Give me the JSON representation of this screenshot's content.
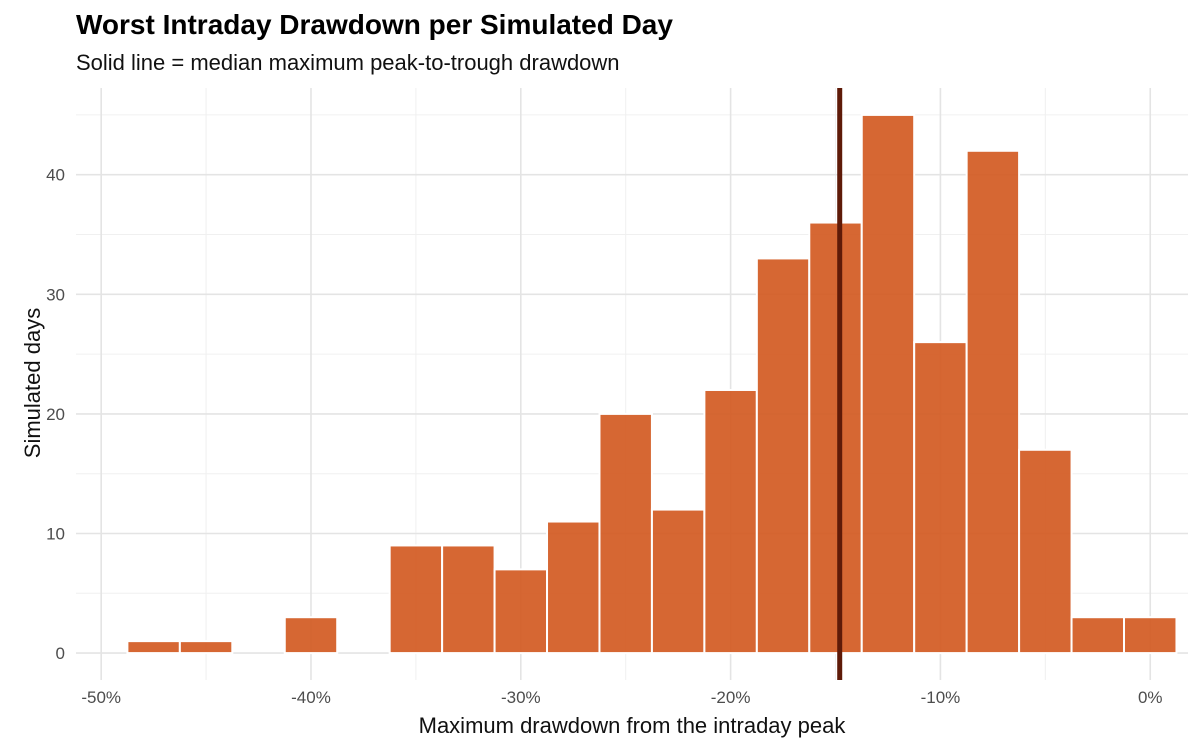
{
  "chart_data": {
    "type": "histogram",
    "title": "Worst Intraday Drawdown per Simulated Day",
    "subtitle": "Solid line = median maximum peak-to-trough drawdown",
    "xlabel": "Maximum drawdown from the intraday peak",
    "ylabel": "Simulated days",
    "x_tick_labels": [
      "-50%",
      "-40%",
      "-30%",
      "-20%",
      "-10%",
      "0%"
    ],
    "x_ticks": [
      -50,
      -40,
      -30,
      -20,
      -10,
      0
    ],
    "y_tick_labels": [
      "0",
      "10",
      "20",
      "30",
      "40"
    ],
    "y_ticks": [
      0,
      10,
      20,
      30,
      40
    ],
    "xlim": [
      -51.2,
      1.8
    ],
    "ylim": [
      -2.25,
      47.25
    ],
    "bin_width": 2.5,
    "bins": [
      {
        "start": -48.75,
        "end": -46.25,
        "count": 1
      },
      {
        "start": -46.25,
        "end": -43.75,
        "count": 1
      },
      {
        "start": -43.75,
        "end": -41.25,
        "count": 0
      },
      {
        "start": -41.25,
        "end": -38.75,
        "count": 3
      },
      {
        "start": -38.75,
        "end": -36.25,
        "count": 0
      },
      {
        "start": -36.25,
        "end": -33.75,
        "count": 9
      },
      {
        "start": -33.75,
        "end": -31.25,
        "count": 9
      },
      {
        "start": -31.25,
        "end": -28.75,
        "count": 7
      },
      {
        "start": -28.75,
        "end": -26.25,
        "count": 11
      },
      {
        "start": -26.25,
        "end": -23.75,
        "count": 20
      },
      {
        "start": -23.75,
        "end": -21.25,
        "count": 12
      },
      {
        "start": -21.25,
        "end": -18.75,
        "count": 22
      },
      {
        "start": -18.75,
        "end": -16.25,
        "count": 33
      },
      {
        "start": -16.25,
        "end": -13.75,
        "count": 36
      },
      {
        "start": -13.75,
        "end": -11.25,
        "count": 45
      },
      {
        "start": -11.25,
        "end": -8.75,
        "count": 26
      },
      {
        "start": -8.75,
        "end": -6.25,
        "count": 42
      },
      {
        "start": -6.25,
        "end": -3.75,
        "count": 17
      },
      {
        "start": -3.75,
        "end": -1.25,
        "count": 3
      },
      {
        "start": -1.25,
        "end": 1.25,
        "count": 3
      }
    ],
    "median": -14.8,
    "grid": true,
    "legend": "none",
    "colors": {
      "bar": "#d25a22",
      "median_line": "#5e1a08",
      "grid": "#e4e4e4"
    }
  }
}
